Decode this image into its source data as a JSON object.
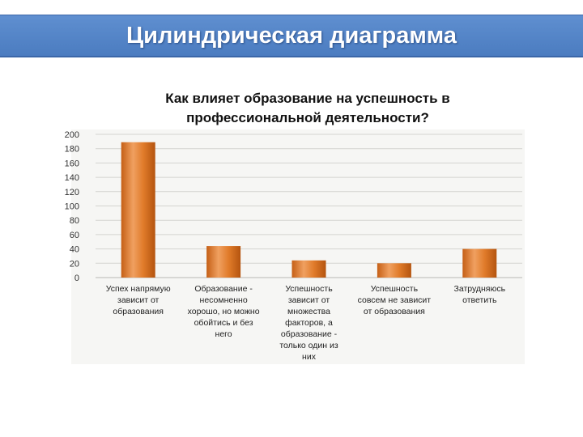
{
  "slide": {
    "title": "Цилиндрическая диаграмма"
  },
  "chart_data": {
    "type": "bar",
    "title_lines": [
      "Как влияет образование на успешность в",
      "профессиональной деятельности?"
    ],
    "categories": [
      [
        "Успех напрямую",
        "зависит от",
        "образования"
      ],
      [
        "Образование -",
        "несомненно",
        "хорошо, но можно",
        "обойтись и без",
        "него"
      ],
      [
        "Успешность",
        "зависит от",
        "множества",
        "факторов, а",
        "образование -",
        "только один из",
        "них"
      ],
      [
        "Успешность",
        "совсем не зависит",
        "от образования"
      ],
      [
        "Затрудняюсь",
        "ответить"
      ]
    ],
    "values": [
      189,
      44,
      24,
      20,
      40
    ],
    "ylim": [
      0,
      200
    ],
    "yticks": [
      0,
      20,
      40,
      60,
      80,
      100,
      120,
      140,
      160,
      180,
      200
    ],
    "grid": true,
    "bar_color": "#e07b2a"
  }
}
